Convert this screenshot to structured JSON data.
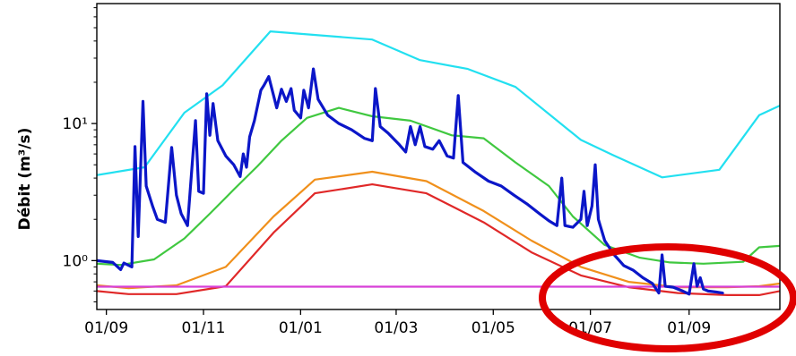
{
  "chart_data": {
    "type": "line",
    "title": "",
    "xlabel": "",
    "ylabel": "Débit (m³/s)",
    "y_scale": "log",
    "ylim": [
      0.44,
      75
    ],
    "xlim": [
      "2023-08-26",
      "2024-10-28"
    ],
    "grid": false,
    "x_tick_labels": [
      {
        "date": "2023-09-01",
        "label": "01/09"
      },
      {
        "date": "2023-11-01",
        "label": "01/11"
      },
      {
        "date": "2024-01-01",
        "label": "01/01"
      },
      {
        "date": "2024-03-01",
        "label": "01/03"
      },
      {
        "date": "2024-05-01",
        "label": "01/05"
      },
      {
        "date": "2024-07-01",
        "label": "01/07"
      },
      {
        "date": "2024-09-01",
        "label": "01/09"
      }
    ],
    "y_tick_labels": [
      {
        "value": 1,
        "label": "10⁰"
      },
      {
        "value": 10,
        "label": "10¹"
      }
    ],
    "series": [
      {
        "color": "#22e0f0",
        "points": [
          [
            "2023-08-26",
            4.2
          ],
          [
            "2023-09-25",
            4.8
          ],
          [
            "2023-10-20",
            12
          ],
          [
            "2023-11-13",
            19
          ],
          [
            "2023-12-13",
            47
          ],
          [
            "2024-02-15",
            41
          ],
          [
            "2024-03-16",
            29
          ],
          [
            "2024-04-15",
            25
          ],
          [
            "2024-05-15",
            18.5
          ],
          [
            "2024-06-25",
            7.6
          ],
          [
            "2024-07-15",
            5.9
          ],
          [
            "2024-08-15",
            4.05
          ],
          [
            "2024-09-20",
            4.6
          ],
          [
            "2024-10-15",
            11.5
          ],
          [
            "2024-10-28",
            13.5
          ]
        ]
      },
      {
        "color": "#40c840",
        "points": [
          [
            "2023-08-26",
            0.95
          ],
          [
            "2023-09-10",
            0.93
          ],
          [
            "2023-10-01",
            1.02
          ],
          [
            "2023-10-20",
            1.45
          ],
          [
            "2023-11-05",
            2.2
          ],
          [
            "2023-11-20",
            3.3
          ],
          [
            "2023-12-05",
            4.9
          ],
          [
            "2023-12-20",
            7.5
          ],
          [
            "2024-01-05",
            11
          ],
          [
            "2024-01-25",
            13
          ],
          [
            "2024-02-15",
            11.3
          ],
          [
            "2024-03-10",
            10.5
          ],
          [
            "2024-04-05",
            8.2
          ],
          [
            "2024-04-25",
            7.8
          ],
          [
            "2024-05-15",
            5.2
          ],
          [
            "2024-06-05",
            3.5
          ],
          [
            "2024-06-20",
            2.1
          ],
          [
            "2024-07-10",
            1.3
          ],
          [
            "2024-08-01",
            1.05
          ],
          [
            "2024-08-20",
            0.97
          ],
          [
            "2024-09-10",
            0.95
          ],
          [
            "2024-10-05",
            0.98
          ],
          [
            "2024-10-15",
            1.25
          ],
          [
            "2024-10-28",
            1.28
          ]
        ]
      },
      {
        "color": "#f0901c",
        "points": [
          [
            "2023-08-26",
            0.66
          ],
          [
            "2023-09-15",
            0.63
          ],
          [
            "2023-10-15",
            0.66
          ],
          [
            "2023-11-15",
            0.9
          ],
          [
            "2023-12-15",
            2.1
          ],
          [
            "2024-01-10",
            3.9
          ],
          [
            "2024-02-15",
            4.45
          ],
          [
            "2024-03-20",
            3.8
          ],
          [
            "2024-04-25",
            2.3
          ],
          [
            "2024-05-25",
            1.4
          ],
          [
            "2024-06-25",
            0.9
          ],
          [
            "2024-07-25",
            0.7
          ],
          [
            "2024-08-25",
            0.64
          ],
          [
            "2024-09-25",
            0.64
          ],
          [
            "2024-10-15",
            0.65
          ],
          [
            "2024-10-28",
            0.68
          ]
        ]
      },
      {
        "color": "#e02828",
        "points": [
          [
            "2023-08-26",
            0.6
          ],
          [
            "2023-09-15",
            0.57
          ],
          [
            "2023-10-15",
            0.57
          ],
          [
            "2023-11-15",
            0.65
          ],
          [
            "2023-12-15",
            1.6
          ],
          [
            "2024-01-10",
            3.1
          ],
          [
            "2024-02-15",
            3.6
          ],
          [
            "2024-03-20",
            3.1
          ],
          [
            "2024-04-25",
            1.9
          ],
          [
            "2024-05-25",
            1.15
          ],
          [
            "2024-06-25",
            0.78
          ],
          [
            "2024-07-25",
            0.64
          ],
          [
            "2024-08-25",
            0.58
          ],
          [
            "2024-09-25",
            0.56
          ],
          [
            "2024-10-15",
            0.56
          ],
          [
            "2024-10-28",
            0.6
          ]
        ]
      },
      {
        "color": "#d840d8",
        "points": [
          [
            "2023-08-26",
            0.645
          ],
          [
            "2024-10-28",
            0.645
          ]
        ]
      },
      {
        "color": "#0b16c8",
        "points": [
          [
            "2023-08-26",
            1.0
          ],
          [
            "2023-09-05",
            0.97
          ],
          [
            "2023-09-10",
            0.86
          ],
          [
            "2023-09-12",
            0.96
          ],
          [
            "2023-09-17",
            0.9
          ],
          [
            "2023-09-19",
            6.8
          ],
          [
            "2023-09-21",
            1.5
          ],
          [
            "2023-09-24",
            14.5
          ],
          [
            "2023-09-26",
            3.5
          ],
          [
            "2023-09-30",
            2.5
          ],
          [
            "2023-10-03",
            2.0
          ],
          [
            "2023-10-08",
            1.9
          ],
          [
            "2023-10-12",
            6.7
          ],
          [
            "2023-10-15",
            3.0
          ],
          [
            "2023-10-18",
            2.2
          ],
          [
            "2023-10-22",
            1.8
          ],
          [
            "2023-10-27",
            10.5
          ],
          [
            "2023-10-29",
            3.2
          ],
          [
            "2023-11-01",
            3.1
          ],
          [
            "2023-11-03",
            16.5
          ],
          [
            "2023-11-05",
            8.2
          ],
          [
            "2023-11-07",
            14.0
          ],
          [
            "2023-11-10",
            7.5
          ],
          [
            "2023-11-15",
            5.8
          ],
          [
            "2023-11-20",
            5.0
          ],
          [
            "2023-11-24",
            4.1
          ],
          [
            "2023-11-26",
            6.0
          ],
          [
            "2023-11-28",
            4.8
          ],
          [
            "2023-11-30",
            8.0
          ],
          [
            "2023-12-03",
            10.5
          ],
          [
            "2023-12-07",
            17.5
          ],
          [
            "2023-12-09",
            19.0
          ],
          [
            "2023-12-12",
            22.0
          ],
          [
            "2023-12-15",
            16.0
          ],
          [
            "2023-12-17",
            13.0
          ],
          [
            "2023-12-20",
            17.8
          ],
          [
            "2023-12-23",
            14.5
          ],
          [
            "2023-12-26",
            18.0
          ],
          [
            "2023-12-28",
            12.5
          ],
          [
            "2024-01-01",
            11.0
          ],
          [
            "2024-01-03",
            17.5
          ],
          [
            "2024-01-06",
            13.0
          ],
          [
            "2024-01-09",
            25.0
          ],
          [
            "2024-01-12",
            15.0
          ],
          [
            "2024-01-18",
            11.5
          ],
          [
            "2024-01-25",
            10.0
          ],
          [
            "2024-02-02",
            9.0
          ],
          [
            "2024-02-10",
            7.8
          ],
          [
            "2024-02-15",
            7.5
          ],
          [
            "2024-02-17",
            18.0
          ],
          [
            "2024-02-20",
            9.5
          ],
          [
            "2024-02-25",
            8.5
          ],
          [
            "2024-03-03",
            7.0
          ],
          [
            "2024-03-07",
            6.2
          ],
          [
            "2024-03-10",
            9.5
          ],
          [
            "2024-03-13",
            7.0
          ],
          [
            "2024-03-16",
            9.5
          ],
          [
            "2024-03-19",
            6.8
          ],
          [
            "2024-03-24",
            6.5
          ],
          [
            "2024-03-28",
            7.5
          ],
          [
            "2024-04-02",
            5.8
          ],
          [
            "2024-04-06",
            5.6
          ],
          [
            "2024-04-09",
            16.0
          ],
          [
            "2024-04-12",
            5.2
          ],
          [
            "2024-04-20",
            4.4
          ],
          [
            "2024-04-28",
            3.8
          ],
          [
            "2024-05-06",
            3.5
          ],
          [
            "2024-05-14",
            3.0
          ],
          [
            "2024-05-22",
            2.6
          ],
          [
            "2024-05-30",
            2.2
          ],
          [
            "2024-06-05",
            1.95
          ],
          [
            "2024-06-10",
            1.8
          ],
          [
            "2024-06-13",
            4.0
          ],
          [
            "2024-06-15",
            1.8
          ],
          [
            "2024-06-20",
            1.75
          ],
          [
            "2024-06-25",
            2.0
          ],
          [
            "2024-06-27",
            3.2
          ],
          [
            "2024-06-29",
            1.8
          ],
          [
            "2024-07-02",
            2.5
          ],
          [
            "2024-07-04",
            5.0
          ],
          [
            "2024-07-06",
            2.0
          ],
          [
            "2024-07-10",
            1.4
          ],
          [
            "2024-07-16",
            1.1
          ],
          [
            "2024-07-22",
            0.92
          ],
          [
            "2024-07-28",
            0.85
          ],
          [
            "2024-08-03",
            0.75
          ],
          [
            "2024-08-09",
            0.68
          ],
          [
            "2024-08-13",
            0.58
          ],
          [
            "2024-08-15",
            1.1
          ],
          [
            "2024-08-17",
            0.65
          ],
          [
            "2024-08-22",
            0.64
          ],
          [
            "2024-08-28",
            0.6
          ],
          [
            "2024-09-01",
            0.57
          ],
          [
            "2024-09-04",
            0.95
          ],
          [
            "2024-09-06",
            0.65
          ],
          [
            "2024-09-08",
            0.75
          ],
          [
            "2024-09-10",
            0.62
          ],
          [
            "2024-09-13",
            0.6
          ],
          [
            "2024-09-18",
            0.59
          ],
          [
            "2024-09-22",
            0.58
          ]
        ]
      }
    ]
  },
  "annotation": {
    "type": "ellipse",
    "color": "#e00000"
  }
}
